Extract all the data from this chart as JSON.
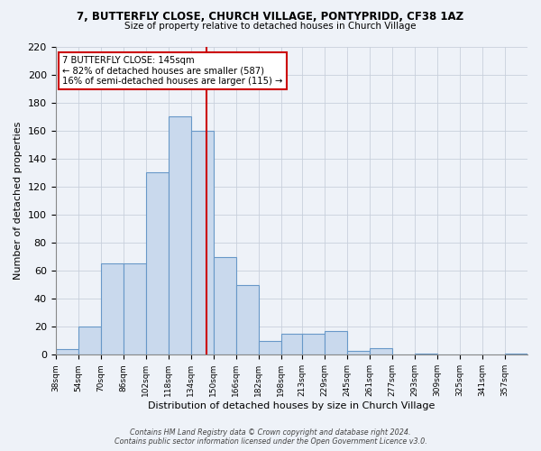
{
  "title": "7, BUTTERFLY CLOSE, CHURCH VILLAGE, PONTYPRIDD, CF38 1AZ",
  "subtitle": "Size of property relative to detached houses in Church Village",
  "xlabel": "Distribution of detached houses by size in Church Village",
  "ylabel": "Number of detached properties",
  "bar_color": "#c9d9ed",
  "bar_edge_color": "#6898c8",
  "grid_color": "#c8d0dc",
  "background_color": "#eef2f8",
  "fig_color": "#eef2f8",
  "vline_x": 145,
  "vline_color": "#cc0000",
  "annotation_title": "7 BUTTERFLY CLOSE: 145sqm",
  "annotation_line1": "← 82% of detached houses are smaller (587)",
  "annotation_line2": "16% of semi-detached houses are larger (115) →",
  "annotation_box_facecolor": "#ffffff",
  "annotation_box_edgecolor": "#cc0000",
  "bins": [
    38,
    54,
    70,
    86,
    102,
    118,
    134,
    150,
    166,
    182,
    198,
    213,
    229,
    245,
    261,
    277,
    293,
    309,
    325,
    341,
    357
  ],
  "bar_heights": [
    4,
    20,
    65,
    65,
    130,
    170,
    160,
    70,
    50,
    10,
    15,
    15,
    17,
    3,
    5,
    0,
    1,
    0,
    0,
    0,
    1
  ],
  "tick_labels": [
    "38sqm",
    "54sqm",
    "70sqm",
    "86sqm",
    "102sqm",
    "118sqm",
    "134sqm",
    "150sqm",
    "166sqm",
    "182sqm",
    "198sqm",
    "213sqm",
    "229sqm",
    "245sqm",
    "261sqm",
    "277sqm",
    "293sqm",
    "309sqm",
    "325sqm",
    "341sqm",
    "357sqm"
  ],
  "ylim": [
    0,
    220
  ],
  "yticks": [
    0,
    20,
    40,
    60,
    80,
    100,
    120,
    140,
    160,
    180,
    200,
    220
  ],
  "footer1": "Contains HM Land Registry data © Crown copyright and database right 2024.",
  "footer2": "Contains public sector information licensed under the Open Government Licence v3.0."
}
